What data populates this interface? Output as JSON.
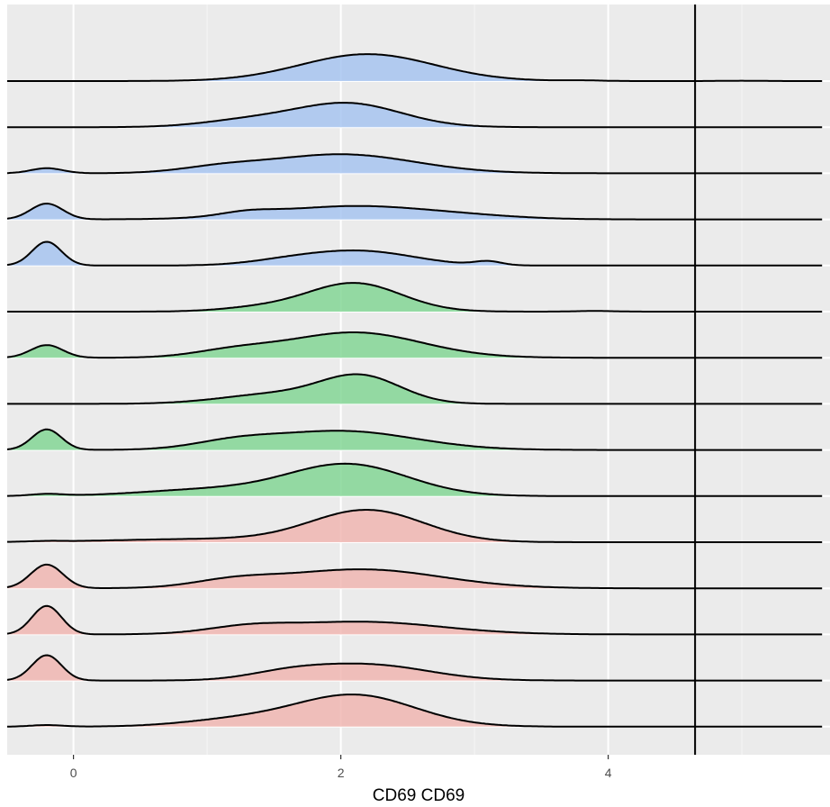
{
  "chart_data": {
    "type": "ridgeline",
    "title": "",
    "xlabel": "CD69 CD69",
    "ylabel": "",
    "xlim": [
      -0.5,
      5.6
    ],
    "x_ticks": [
      0,
      2,
      4
    ],
    "x_tick_labels": [
      "0",
      "2",
      "4"
    ],
    "x_minor_ticks": [
      1,
      3,
      5
    ],
    "grid": true,
    "vline": 4.65,
    "fill_colors": {
      "blue": "#a3c2f0",
      "green": "#7dd490",
      "red": "#f0b3ae"
    },
    "peak_scale": 2.85,
    "ridges": [
      {
        "group": "blue",
        "bumps": [
          [
            2.2,
            0.5,
            0.85
          ],
          [
            3.8,
            0.15,
            0.02
          ],
          [
            5.0,
            0.15,
            0.01
          ]
        ]
      },
      {
        "group": "blue",
        "bumps": [
          [
            2.05,
            0.4,
            0.75
          ],
          [
            1.3,
            0.35,
            0.2
          ]
        ]
      },
      {
        "group": "blue",
        "bumps": [
          [
            -0.2,
            0.12,
            0.16
          ],
          [
            2.0,
            0.55,
            0.6
          ],
          [
            1.1,
            0.3,
            0.15
          ]
        ]
      },
      {
        "group": "blue",
        "bumps": [
          [
            -0.2,
            0.12,
            0.5
          ],
          [
            2.1,
            0.6,
            0.42
          ],
          [
            1.3,
            0.2,
            0.12
          ],
          [
            3.0,
            0.4,
            0.05
          ]
        ]
      },
      {
        "group": "blue",
        "bumps": [
          [
            -0.2,
            0.11,
            0.75
          ],
          [
            2.15,
            0.4,
            0.45
          ],
          [
            1.6,
            0.3,
            0.12
          ],
          [
            3.1,
            0.1,
            0.12
          ]
        ]
      },
      {
        "group": "green",
        "bumps": [
          [
            2.1,
            0.35,
            0.9
          ],
          [
            1.4,
            0.3,
            0.12
          ],
          [
            3.9,
            0.15,
            0.02
          ]
        ]
      },
      {
        "group": "green",
        "bumps": [
          [
            -0.2,
            0.12,
            0.4
          ],
          [
            2.1,
            0.5,
            0.8
          ],
          [
            1.2,
            0.3,
            0.2
          ]
        ]
      },
      {
        "group": "green",
        "bumps": [
          [
            2.15,
            0.3,
            0.85
          ],
          [
            1.5,
            0.4,
            0.3
          ]
        ]
      },
      {
        "group": "green",
        "bumps": [
          [
            -0.2,
            0.11,
            0.65
          ],
          [
            2.0,
            0.55,
            0.6
          ],
          [
            1.2,
            0.3,
            0.2
          ]
        ]
      },
      {
        "group": "green",
        "bumps": [
          [
            -0.2,
            0.12,
            0.06
          ],
          [
            2.05,
            0.45,
            1.0
          ],
          [
            1.0,
            0.5,
            0.2
          ]
        ]
      },
      {
        "group": "red",
        "bumps": [
          [
            2.2,
            0.42,
            1.0
          ],
          [
            1.0,
            0.7,
            0.1
          ],
          [
            -0.2,
            0.12,
            0.02
          ]
        ]
      },
      {
        "group": "red",
        "bumps": [
          [
            -0.2,
            0.12,
            0.75
          ],
          [
            2.15,
            0.6,
            0.6
          ],
          [
            1.2,
            0.3,
            0.2
          ]
        ]
      },
      {
        "group": "red",
        "bumps": [
          [
            -0.2,
            0.11,
            0.9
          ],
          [
            2.15,
            0.6,
            0.4
          ],
          [
            1.3,
            0.3,
            0.18
          ]
        ]
      },
      {
        "group": "red",
        "bumps": [
          [
            -0.2,
            0.11,
            0.8
          ],
          [
            2.2,
            0.45,
            0.5
          ],
          [
            1.6,
            0.3,
            0.2
          ]
        ]
      },
      {
        "group": "red",
        "bumps": [
          [
            2.1,
            0.45,
            1.0
          ],
          [
            1.2,
            0.4,
            0.2
          ],
          [
            -0.2,
            0.12,
            0.05
          ]
        ]
      }
    ]
  }
}
